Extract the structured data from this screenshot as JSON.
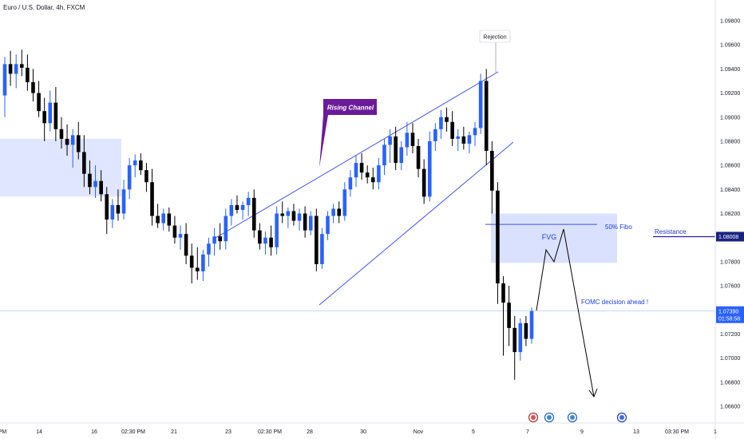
{
  "header": {
    "symbol_title": "Euro / U.S. Dollar, 4h, FXCM"
  },
  "colors": {
    "background": "#ffffff",
    "bull_candle": "#2962ff",
    "bear_candle": "#000000",
    "zone_fill": "#d6deff",
    "channel_line": "#3f51e8",
    "fibo_line": "#3f51e8",
    "resistance_line": "#311b92",
    "label_purple": "#6a1b9a",
    "label_blue": "#1a3fd6",
    "axis_text": "#131722",
    "price_label_bg": "#2962ff",
    "resistance_label_bg": "#1a237e"
  },
  "chart_data": {
    "type": "candlestick",
    "title": "Euro / U.S. Dollar, 4h, FXCM",
    "ylim": [
      1.0645,
      1.0998
    ],
    "y_ticks": [
      "1.09800",
      "1.09600",
      "1.09400",
      "1.09200",
      "1.09000",
      "1.08800",
      "1.08600",
      "1.08400",
      "1.08200",
      "1.08000",
      "1.07800",
      "1.07600",
      "1.07400",
      "1.07200",
      "1.07000",
      "1.06800",
      "1.06600"
    ],
    "x_ticks": [
      "PM",
      "14",
      "16",
      "02:30 PM",
      "21",
      "23",
      "02:30 PM",
      "28",
      "30",
      "Nov",
      "5",
      "7",
      "9",
      "13",
      "03:30 PM",
      "1"
    ],
    "grid": false,
    "candles": [
      {
        "o": 1.0918,
        "h": 1.095,
        "l": 1.09,
        "c": 1.0944
      },
      {
        "o": 1.0944,
        "h": 1.0955,
        "l": 1.0926,
        "c": 1.0936
      },
      {
        "o": 1.0936,
        "h": 1.0952,
        "l": 1.0924,
        "c": 1.0944
      },
      {
        "o": 1.0944,
        "h": 1.0956,
        "l": 1.0934,
        "c": 1.0941
      },
      {
        "o": 1.0941,
        "h": 1.0952,
        "l": 1.0922,
        "c": 1.0929
      },
      {
        "o": 1.0929,
        "h": 1.094,
        "l": 1.0913,
        "c": 1.092
      },
      {
        "o": 1.092,
        "h": 1.093,
        "l": 1.09,
        "c": 1.0905
      },
      {
        "o": 1.0905,
        "h": 1.0916,
        "l": 1.088,
        "c": 1.0895
      },
      {
        "o": 1.0895,
        "h": 1.0922,
        "l": 1.0888,
        "c": 1.0912
      },
      {
        "o": 1.0912,
        "h": 1.0925,
        "l": 1.088,
        "c": 1.089
      },
      {
        "o": 1.089,
        "h": 1.09,
        "l": 1.0874,
        "c": 1.0882
      },
      {
        "o": 1.0882,
        "h": 1.0894,
        "l": 1.0868,
        "c": 1.0877
      },
      {
        "o": 1.0877,
        "h": 1.089,
        "l": 1.0858,
        "c": 1.0885
      },
      {
        "o": 1.0885,
        "h": 1.0896,
        "l": 1.0865,
        "c": 1.0871
      },
      {
        "o": 1.0871,
        "h": 1.0885,
        "l": 1.0842,
        "c": 1.0853
      },
      {
        "o": 1.0853,
        "h": 1.0864,
        "l": 1.0836,
        "c": 1.0842
      },
      {
        "o": 1.0842,
        "h": 1.086,
        "l": 1.0833,
        "c": 1.0847
      },
      {
        "o": 1.0847,
        "h": 1.0856,
        "l": 1.083,
        "c": 1.0836
      },
      {
        "o": 1.0836,
        "h": 1.0842,
        "l": 1.0803,
        "c": 1.0815
      },
      {
        "o": 1.0815,
        "h": 1.0832,
        "l": 1.0808,
        "c": 1.0827
      },
      {
        "o": 1.0827,
        "h": 1.084,
        "l": 1.0814,
        "c": 1.082
      },
      {
        "o": 1.082,
        "h": 1.0848,
        "l": 1.0815,
        "c": 1.084
      },
      {
        "o": 1.084,
        "h": 1.0866,
        "l": 1.0832,
        "c": 1.086
      },
      {
        "o": 1.086,
        "h": 1.0869,
        "l": 1.085,
        "c": 1.0864
      },
      {
        "o": 1.0864,
        "h": 1.087,
        "l": 1.0852,
        "c": 1.0856
      },
      {
        "o": 1.0856,
        "h": 1.0862,
        "l": 1.0838,
        "c": 1.0846
      },
      {
        "o": 1.0846,
        "h": 1.0857,
        "l": 1.081,
        "c": 1.0818
      },
      {
        "o": 1.0818,
        "h": 1.0828,
        "l": 1.0808,
        "c": 1.0812
      },
      {
        "o": 1.0812,
        "h": 1.0824,
        "l": 1.0806,
        "c": 1.082
      },
      {
        "o": 1.082,
        "h": 1.0825,
        "l": 1.0805,
        "c": 1.081
      },
      {
        "o": 1.081,
        "h": 1.0818,
        "l": 1.0795,
        "c": 1.08
      },
      {
        "o": 1.08,
        "h": 1.081,
        "l": 1.079,
        "c": 1.0803
      },
      {
        "o": 1.0803,
        "h": 1.0812,
        "l": 1.0778,
        "c": 1.0785
      },
      {
        "o": 1.0785,
        "h": 1.0795,
        "l": 1.0762,
        "c": 1.0775
      },
      {
        "o": 1.0775,
        "h": 1.0792,
        "l": 1.0765,
        "c": 1.0772
      },
      {
        "o": 1.0772,
        "h": 1.079,
        "l": 1.0764,
        "c": 1.0786
      },
      {
        "o": 1.0786,
        "h": 1.08,
        "l": 1.0776,
        "c": 1.0795
      },
      {
        "o": 1.0795,
        "h": 1.0808,
        "l": 1.0785,
        "c": 1.0801
      },
      {
        "o": 1.0801,
        "h": 1.0812,
        "l": 1.079,
        "c": 1.0797
      },
      {
        "o": 1.0797,
        "h": 1.0824,
        "l": 1.079,
        "c": 1.0818
      },
      {
        "o": 1.0818,
        "h": 1.0832,
        "l": 1.081,
        "c": 1.0827
      },
      {
        "o": 1.0827,
        "h": 1.0835,
        "l": 1.082,
        "c": 1.0823
      },
      {
        "o": 1.0823,
        "h": 1.083,
        "l": 1.0815,
        "c": 1.0827
      },
      {
        "o": 1.0827,
        "h": 1.0838,
        "l": 1.0818,
        "c": 1.0833
      },
      {
        "o": 1.0833,
        "h": 1.084,
        "l": 1.08,
        "c": 1.0806
      },
      {
        "o": 1.0806,
        "h": 1.0812,
        "l": 1.079,
        "c": 1.0795
      },
      {
        "o": 1.0795,
        "h": 1.0805,
        "l": 1.0786,
        "c": 1.08
      },
      {
        "o": 1.08,
        "h": 1.081,
        "l": 1.0785,
        "c": 1.0792
      },
      {
        "o": 1.0792,
        "h": 1.0826,
        "l": 1.0786,
        "c": 1.082
      },
      {
        "o": 1.082,
        "h": 1.083,
        "l": 1.0812,
        "c": 1.0818
      },
      {
        "o": 1.0818,
        "h": 1.0825,
        "l": 1.0808,
        "c": 1.0822
      },
      {
        "o": 1.0822,
        "h": 1.0828,
        "l": 1.081,
        "c": 1.0814
      },
      {
        "o": 1.0814,
        "h": 1.0824,
        "l": 1.0806,
        "c": 1.082
      },
      {
        "o": 1.082,
        "h": 1.0826,
        "l": 1.08,
        "c": 1.0806
      },
      {
        "o": 1.0806,
        "h": 1.0822,
        "l": 1.0802,
        "c": 1.0818
      },
      {
        "o": 1.0818,
        "h": 1.0824,
        "l": 1.0772,
        "c": 1.0778
      },
      {
        "o": 1.0778,
        "h": 1.0808,
        "l": 1.0774,
        "c": 1.0803
      },
      {
        "o": 1.0803,
        "h": 1.0822,
        "l": 1.0798,
        "c": 1.0818
      },
      {
        "o": 1.0818,
        "h": 1.0828,
        "l": 1.0812,
        "c": 1.0824
      },
      {
        "o": 1.0824,
        "h": 1.083,
        "l": 1.0812,
        "c": 1.0818
      },
      {
        "o": 1.0818,
        "h": 1.0846,
        "l": 1.0814,
        "c": 1.084
      },
      {
        "o": 1.084,
        "h": 1.0856,
        "l": 1.0834,
        "c": 1.085
      },
      {
        "o": 1.085,
        "h": 1.0868,
        "l": 1.0842,
        "c": 1.0862
      },
      {
        "o": 1.0862,
        "h": 1.087,
        "l": 1.0848,
        "c": 1.0854
      },
      {
        "o": 1.0854,
        "h": 1.086,
        "l": 1.0845,
        "c": 1.085
      },
      {
        "o": 1.085,
        "h": 1.0858,
        "l": 1.084,
        "c": 1.0846
      },
      {
        "o": 1.0846,
        "h": 1.0866,
        "l": 1.084,
        "c": 1.086
      },
      {
        "o": 1.086,
        "h": 1.0882,
        "l": 1.0852,
        "c": 1.0877
      },
      {
        "o": 1.0877,
        "h": 1.089,
        "l": 1.0862,
        "c": 1.0884
      },
      {
        "o": 1.0884,
        "h": 1.0892,
        "l": 1.0856,
        "c": 1.0862
      },
      {
        "o": 1.0862,
        "h": 1.088,
        "l": 1.0856,
        "c": 1.0875
      },
      {
        "o": 1.0875,
        "h": 1.0896,
        "l": 1.0868,
        "c": 1.0887
      },
      {
        "o": 1.0887,
        "h": 1.0895,
        "l": 1.087,
        "c": 1.0876
      },
      {
        "o": 1.0876,
        "h": 1.0882,
        "l": 1.085,
        "c": 1.0857
      },
      {
        "o": 1.0857,
        "h": 1.0865,
        "l": 1.0828,
        "c": 1.0834
      },
      {
        "o": 1.0834,
        "h": 1.0888,
        "l": 1.083,
        "c": 1.088
      },
      {
        "o": 1.088,
        "h": 1.0895,
        "l": 1.0872,
        "c": 1.089
      },
      {
        "o": 1.089,
        "h": 1.0906,
        "l": 1.0882,
        "c": 1.09
      },
      {
        "o": 1.09,
        "h": 1.0908,
        "l": 1.0888,
        "c": 1.0896
      },
      {
        "o": 1.0896,
        "h": 1.0905,
        "l": 1.0876,
        "c": 1.0882
      },
      {
        "o": 1.0882,
        "h": 1.089,
        "l": 1.0872,
        "c": 1.0884
      },
      {
        "o": 1.0884,
        "h": 1.0892,
        "l": 1.0873,
        "c": 1.0878
      },
      {
        "o": 1.0878,
        "h": 1.0888,
        "l": 1.087,
        "c": 1.0885
      },
      {
        "o": 1.0885,
        "h": 1.0896,
        "l": 1.0876,
        "c": 1.0891
      },
      {
        "o": 1.0891,
        "h": 1.0936,
        "l": 1.0886,
        "c": 1.093
      },
      {
        "o": 1.093,
        "h": 1.094,
        "l": 1.086,
        "c": 1.0872
      },
      {
        "o": 1.0872,
        "h": 1.088,
        "l": 1.082,
        "c": 1.0839
      },
      {
        "o": 1.0839,
        "h": 1.0846,
        "l": 1.0745,
        "c": 1.0762
      },
      {
        "o": 1.0762,
        "h": 1.0768,
        "l": 1.0702,
        "c": 1.0746
      },
      {
        "o": 1.0746,
        "h": 1.076,
        "l": 1.071,
        "c": 1.0725
      },
      {
        "o": 1.0725,
        "h": 1.0735,
        "l": 1.0682,
        "c": 1.0705
      },
      {
        "o": 1.0705,
        "h": 1.0733,
        "l": 1.0698,
        "c": 1.0729
      },
      {
        "o": 1.0729,
        "h": 1.0735,
        "l": 1.071,
        "c": 1.0716
      },
      {
        "o": 1.0716,
        "h": 1.0742,
        "l": 1.0712,
        "c": 1.0739
      }
    ],
    "levels": {
      "current_price": 1.0739,
      "resistance": 1.08008,
      "fibo_50": 1.0811
    },
    "annotations": {
      "rejection": "Rejection",
      "rising_channel": "Rising Channel",
      "fvg": "FVG",
      "fibo": "50% Fibo",
      "resistance": "Resistance",
      "fomc": "FOMC decision ahead !"
    },
    "price_labels": {
      "current_price": "1.07390",
      "countdown": "01:58:58",
      "resistance": "1.08008"
    }
  }
}
